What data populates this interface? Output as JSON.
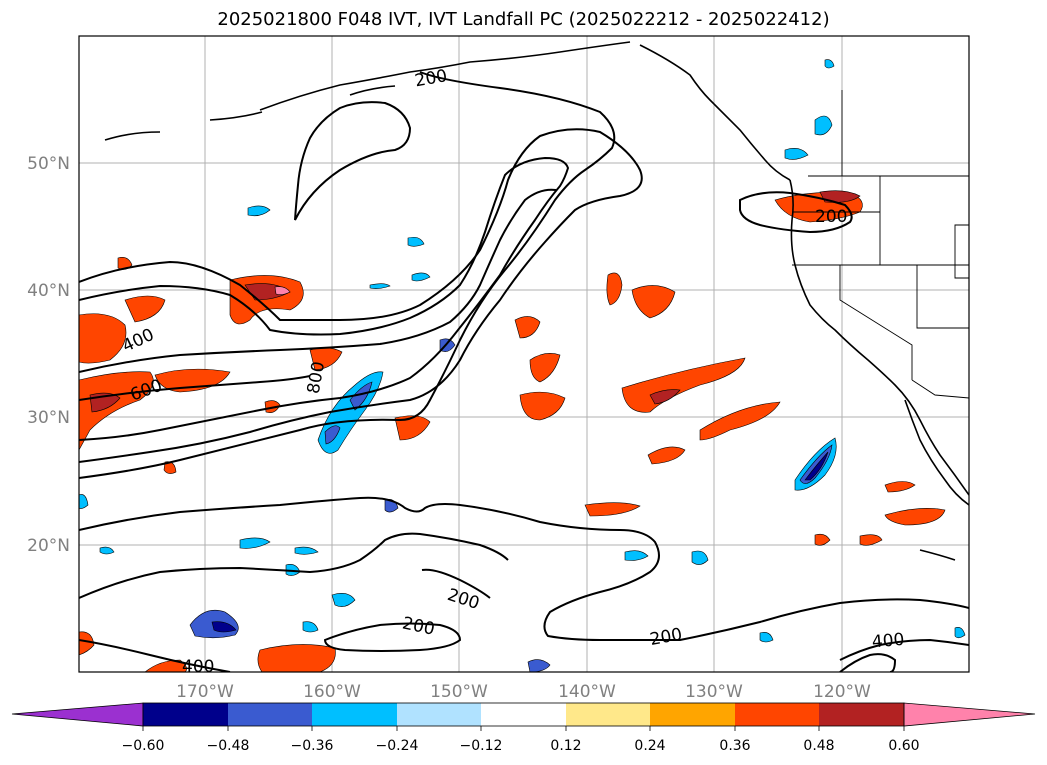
{
  "title": "2025021800 F048 IVT, IVT Landfall PC (2025022212 - 2025022412)",
  "lat_labels": [
    "50°N",
    "40°N",
    "30°N",
    "20°N"
  ],
  "lon_labels": [
    "170°W",
    "160°W",
    "150°W",
    "140°W",
    "130°W",
    "120°W"
  ],
  "contour_labels": [
    "200",
    "200",
    "400",
    "600",
    "800",
    "200",
    "200",
    "200",
    "400",
    "400"
  ],
  "colorbar": {
    "ticks": [
      "−0.60",
      "−0.48",
      "−0.36",
      "−0.24",
      "−0.12",
      "0.12",
      "0.24",
      "0.36",
      "0.48",
      "0.60"
    ],
    "colors": [
      "#9b30d0",
      "#00008b",
      "#3a5bd0",
      "#00bfff",
      "#b0e2ff",
      "#ffffff",
      "#ffe88a",
      "#ffa500",
      "#ff4500",
      "#b22222",
      "#ff82ab"
    ]
  },
  "colors": {
    "warm_fill": "#ff4500",
    "warm_core": "#b22222",
    "warm_edge": "#ffa500",
    "cool_fill": "#00bfff",
    "cool_core": "#3a5bd0",
    "cool_deep": "#00008b"
  }
}
